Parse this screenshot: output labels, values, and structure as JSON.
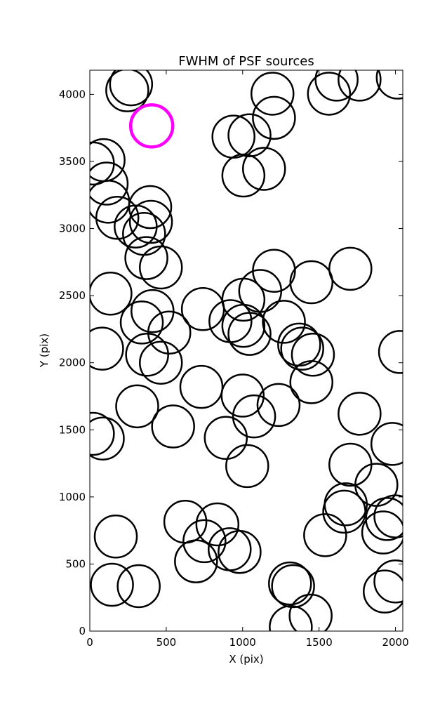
{
  "chart_data": {
    "type": "scatter",
    "title": "FWHM of PSF sources",
    "xlabel": "X (pix)",
    "ylabel": "Y (pix)",
    "xlim": [
      0,
      2048
    ],
    "ylim": [
      0,
      4180
    ],
    "xticks": [
      0,
      500,
      1000,
      1500,
      2000
    ],
    "yticks": [
      0,
      500,
      1000,
      1500,
      2000,
      2500,
      3000,
      3500,
      4000
    ],
    "grid": false,
    "marker": "open-circle",
    "highlight_color": "#ff00ff",
    "normal_color": "#000000",
    "highlight_point": {
      "x": 405,
      "y": 3765
    },
    "points": [
      {
        "x": 245,
        "y": 4030
      },
      {
        "x": 270,
        "y": 4075
      },
      {
        "x": 1195,
        "y": 4005
      },
      {
        "x": 1565,
        "y": 4005
      },
      {
        "x": 1615,
        "y": 4110
      },
      {
        "x": 1765,
        "y": 4110
      },
      {
        "x": 2015,
        "y": 4125
      },
      {
        "x": 940,
        "y": 3685
      },
      {
        "x": 1045,
        "y": 3695
      },
      {
        "x": 1205,
        "y": 3825
      },
      {
        "x": 1005,
        "y": 3395
      },
      {
        "x": 1140,
        "y": 3445
      },
      {
        "x": 20,
        "y": 3485
      },
      {
        "x": 90,
        "y": 3510
      },
      {
        "x": 110,
        "y": 3335
      },
      {
        "x": 120,
        "y": 3200
      },
      {
        "x": 180,
        "y": 3080
      },
      {
        "x": 300,
        "y": 3015
      },
      {
        "x": 395,
        "y": 3160
      },
      {
        "x": 400,
        "y": 3050
      },
      {
        "x": 355,
        "y": 2960
      },
      {
        "x": 370,
        "y": 2780
      },
      {
        "x": 465,
        "y": 2710
      },
      {
        "x": 135,
        "y": 2515
      },
      {
        "x": 410,
        "y": 2385
      },
      {
        "x": 340,
        "y": 2300
      },
      {
        "x": 520,
        "y": 2225
      },
      {
        "x": 80,
        "y": 2105
      },
      {
        "x": 375,
        "y": 2060
      },
      {
        "x": 465,
        "y": 2000
      },
      {
        "x": 740,
        "y": 2400
      },
      {
        "x": 920,
        "y": 2310
      },
      {
        "x": 1005,
        "y": 2470
      },
      {
        "x": 1005,
        "y": 2275
      },
      {
        "x": 1045,
        "y": 2215
      },
      {
        "x": 1115,
        "y": 2535
      },
      {
        "x": 1205,
        "y": 2685
      },
      {
        "x": 1450,
        "y": 2600
      },
      {
        "x": 1705,
        "y": 2700
      },
      {
        "x": 1270,
        "y": 2305
      },
      {
        "x": 1370,
        "y": 2135
      },
      {
        "x": 1390,
        "y": 2105
      },
      {
        "x": 1460,
        "y": 2060
      },
      {
        "x": 1450,
        "y": 1855
      },
      {
        "x": 2030,
        "y": 2080
      },
      {
        "x": 730,
        "y": 1820
      },
      {
        "x": 1000,
        "y": 1755
      },
      {
        "x": 1075,
        "y": 1600
      },
      {
        "x": 1235,
        "y": 1685
      },
      {
        "x": 310,
        "y": 1675
      },
      {
        "x": 545,
        "y": 1525
      },
      {
        "x": 20,
        "y": 1470
      },
      {
        "x": 85,
        "y": 1435
      },
      {
        "x": 890,
        "y": 1440
      },
      {
        "x": 1030,
        "y": 1230
      },
      {
        "x": 1765,
        "y": 1620
      },
      {
        "x": 1980,
        "y": 1395
      },
      {
        "x": 1705,
        "y": 1240
      },
      {
        "x": 1875,
        "y": 1090
      },
      {
        "x": 1675,
        "y": 945
      },
      {
        "x": 1665,
        "y": 890
      },
      {
        "x": 1945,
        "y": 835
      },
      {
        "x": 2000,
        "y": 855
      },
      {
        "x": 1920,
        "y": 735
      },
      {
        "x": 1540,
        "y": 715
      },
      {
        "x": 625,
        "y": 815
      },
      {
        "x": 835,
        "y": 795
      },
      {
        "x": 750,
        "y": 670
      },
      {
        "x": 695,
        "y": 520
      },
      {
        "x": 915,
        "y": 610
      },
      {
        "x": 980,
        "y": 590
      },
      {
        "x": 170,
        "y": 705
      },
      {
        "x": 145,
        "y": 345
      },
      {
        "x": 320,
        "y": 335
      },
      {
        "x": 1310,
        "y": 355
      },
      {
        "x": 1330,
        "y": 335
      },
      {
        "x": 1315,
        "y": 30
      },
      {
        "x": 1445,
        "y": 115
      },
      {
        "x": 1930,
        "y": 295
      },
      {
        "x": 2000,
        "y": 370
      }
    ]
  }
}
